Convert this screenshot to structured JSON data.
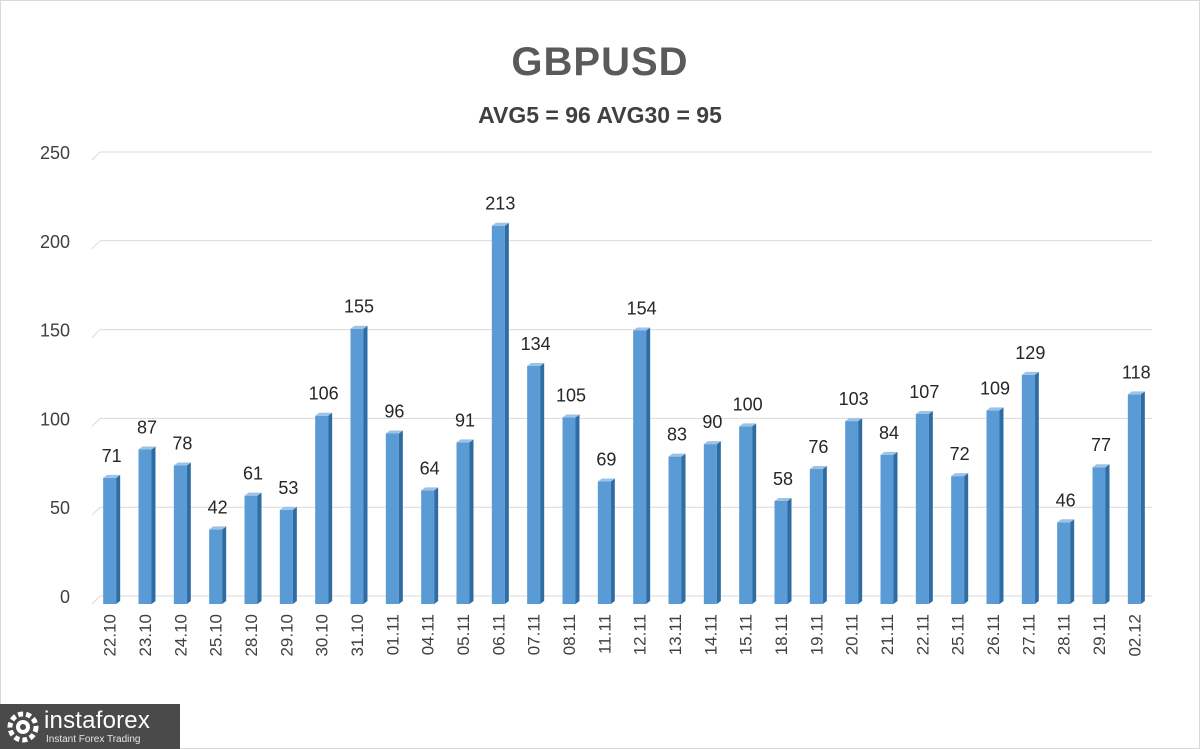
{
  "chart_data": {
    "type": "bar",
    "title": "GBPUSD",
    "subtitle": "AVG5 = 96 AVG30 = 95",
    "categories": [
      "22.10",
      "23.10",
      "24.10",
      "25.10",
      "28.10",
      "29.10",
      "30.10",
      "31.10",
      "01.11",
      "04.11",
      "05.11",
      "06.11",
      "07.11",
      "08.11",
      "11.11",
      "12.11",
      "13.11",
      "14.11",
      "15.11",
      "18.11",
      "19.11",
      "20.11",
      "21.11",
      "22.11",
      "25.11",
      "26.11",
      "27.11",
      "28.11",
      "29.11",
      "02.12"
    ],
    "values": [
      71,
      87,
      78,
      42,
      61,
      53,
      106,
      155,
      96,
      64,
      91,
      213,
      134,
      105,
      69,
      154,
      83,
      90,
      100,
      58,
      76,
      103,
      84,
      107,
      72,
      109,
      129,
      46,
      77,
      118
    ],
    "yticks": [
      0,
      50,
      100,
      150,
      200,
      250
    ],
    "ylim": [
      0,
      250
    ],
    "grid": true,
    "legend": "none",
    "data_labels": true,
    "colors": {
      "bar": "#5b9bd5",
      "bar_side": "#2e6da4",
      "bar_top": "#9cc3e6",
      "grid": "#d9d9d9"
    }
  },
  "watermark": {
    "name": "instaforex",
    "tagline": "Instant Forex Trading"
  }
}
